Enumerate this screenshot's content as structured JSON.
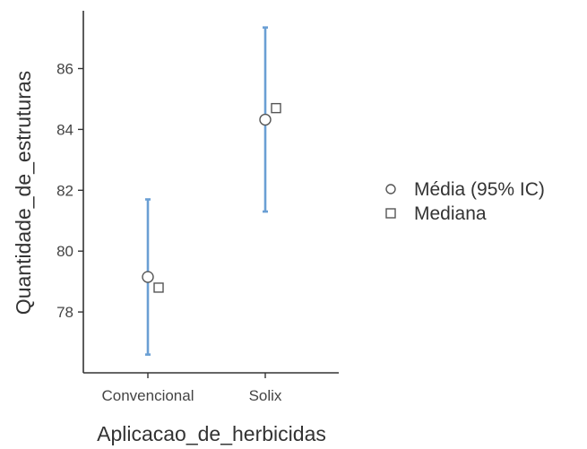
{
  "chart_data": {
    "type": "scatter",
    "title": "",
    "xlabel": "Aplicacao_de_herbicidas",
    "ylabel": "Quantidade_de_estruturas",
    "categories": [
      "Convencional",
      "Solix"
    ],
    "ylim": [
      76.0,
      87.9
    ],
    "yticks": [
      78,
      80,
      82,
      84,
      86
    ],
    "grid": false,
    "legend_position": "right",
    "series": [
      {
        "name": "Média (95% IC)",
        "marker": "circle",
        "values": [
          79.15,
          84.32
        ],
        "ci_lower": [
          76.6,
          81.3
        ],
        "ci_upper": [
          81.7,
          87.35
        ]
      },
      {
        "name": "Mediana",
        "marker": "square",
        "values": [
          78.8,
          84.7
        ]
      }
    ],
    "colors": {
      "error_bar": "#6a9fd4",
      "marker_stroke": "#555555",
      "axis": "#333333"
    }
  }
}
